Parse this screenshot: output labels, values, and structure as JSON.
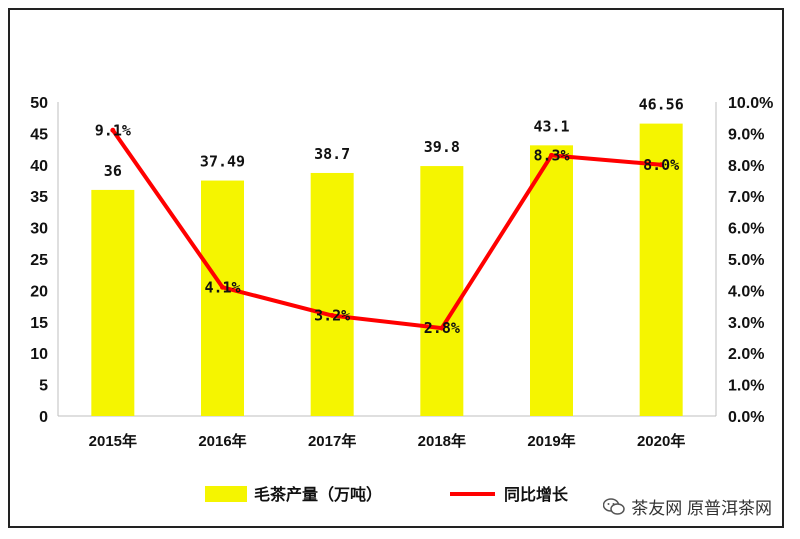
{
  "chart_data": {
    "type": "bar+line",
    "categories": [
      "2015年",
      "2016年",
      "2017年",
      "2018年",
      "2019年",
      "2020年"
    ],
    "series": [
      {
        "name": "毛茶产量（万吨）",
        "type": "bar",
        "axis": "left",
        "values": [
          36,
          37.49,
          38.7,
          39.8,
          43.1,
          46.56
        ],
        "labels": [
          "36",
          "37.49",
          "38.7",
          "39.8",
          "43.1",
          "46.56"
        ],
        "color": "#F5F500"
      },
      {
        "name": "同比增长",
        "type": "line",
        "axis": "right",
        "values": [
          9.1,
          4.1,
          3.2,
          2.8,
          8.3,
          8.0
        ],
        "labels": [
          "9.1%",
          "4.1%",
          "3.2%",
          "2.8%",
          "8.3%",
          "8.0%"
        ],
        "color": "#FF0000"
      }
    ],
    "y_left": {
      "min": 0,
      "max": 50,
      "ticks": [
        "0",
        "5",
        "10",
        "15",
        "20",
        "25",
        "30",
        "35",
        "40",
        "45",
        "50"
      ]
    },
    "y_right": {
      "min": 0,
      "max": 10,
      "ticks": [
        "0.0%",
        "1.0%",
        "2.0%",
        "3.0%",
        "4.0%",
        "5.0%",
        "6.0%",
        "7.0%",
        "8.0%",
        "9.0%",
        "10.0%"
      ]
    },
    "legend_position": "bottom-center"
  },
  "watermark": {
    "text": "茶友网 原普洱茶网",
    "icon": "wechat-icon"
  }
}
